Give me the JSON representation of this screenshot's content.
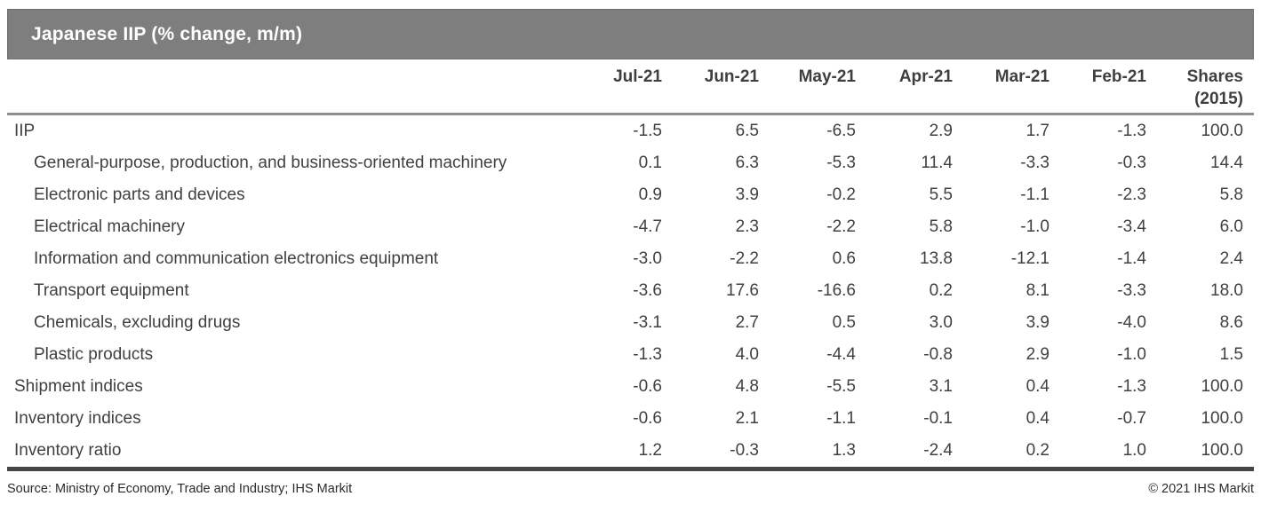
{
  "title_bar": {
    "title": "Japanese IIP (% change, m/m)"
  },
  "chart_data": {
    "type": "table",
    "title": "Japanese IIP (% change, m/m)",
    "columns": [
      "Jul-21",
      "Jun-21",
      "May-21",
      "Apr-21",
      "Mar-21",
      "Feb-21",
      "Shares (2015)"
    ],
    "rows": [
      {
        "label": "IIP",
        "indent": false,
        "values": [
          "-1.5",
          "6.5",
          "-6.5",
          "2.9",
          "1.7",
          "-1.3",
          "100.0"
        ]
      },
      {
        "label": "General-purpose, production, and business-oriented machinery",
        "indent": true,
        "values": [
          "0.1",
          "6.3",
          "-5.3",
          "11.4",
          "-3.3",
          "-0.3",
          "14.4"
        ]
      },
      {
        "label": "Electronic parts and devices",
        "indent": true,
        "values": [
          "0.9",
          "3.9",
          "-0.2",
          "5.5",
          "-1.1",
          "-2.3",
          "5.8"
        ]
      },
      {
        "label": "Electrical machinery",
        "indent": true,
        "values": [
          "-4.7",
          "2.3",
          "-2.2",
          "5.8",
          "-1.0",
          "-3.4",
          "6.0"
        ]
      },
      {
        "label": "Information and communication electronics equipment",
        "indent": true,
        "values": [
          "-3.0",
          "-2.2",
          "0.6",
          "13.8",
          "-12.1",
          "-1.4",
          "2.4"
        ]
      },
      {
        "label": "Transport equipment",
        "indent": true,
        "values": [
          "-3.6",
          "17.6",
          "-16.6",
          "0.2",
          "8.1",
          "-3.3",
          "18.0"
        ]
      },
      {
        "label": "Chemicals, excluding drugs",
        "indent": true,
        "values": [
          "-3.1",
          "2.7",
          "0.5",
          "3.0",
          "3.9",
          "-4.0",
          "8.6"
        ]
      },
      {
        "label": "Plastic products",
        "indent": true,
        "values": [
          "-1.3",
          "4.0",
          "-4.4",
          "-0.8",
          "2.9",
          "-1.0",
          "1.5"
        ]
      },
      {
        "label": "Shipment indices",
        "indent": false,
        "values": [
          "-0.6",
          "4.8",
          "-5.5",
          "3.1",
          "0.4",
          "-1.3",
          "100.0"
        ]
      },
      {
        "label": "Inventory indices",
        "indent": false,
        "values": [
          "-0.6",
          "2.1",
          "-1.1",
          "-0.1",
          "0.4",
          "-0.7",
          "100.0"
        ]
      },
      {
        "label": "Inventory ratio",
        "indent": false,
        "values": [
          "1.2",
          "-0.3",
          "1.3",
          "-2.4",
          "0.2",
          "1.0",
          "100.0"
        ]
      }
    ]
  },
  "footer": {
    "source": "Source: Ministry of Economy, Trade and Industry; IHS Markit",
    "copyright": "© 2021 IHS Markit"
  },
  "colors": {
    "title_bar_bg": "#7e7e7e",
    "title_text": "#ffffff",
    "header_rule": "#8f8f8f",
    "bottom_rule": "#454545",
    "body_text": "#404040"
  }
}
